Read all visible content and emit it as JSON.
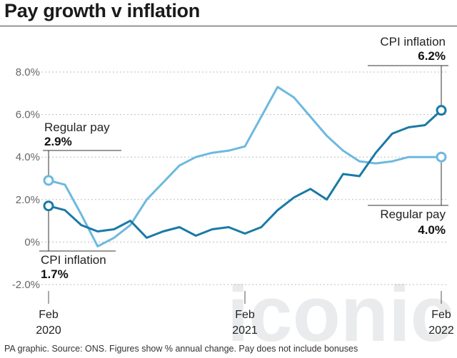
{
  "title": "Pay growth v inflation",
  "footer": "PA graphic. Source: ONS. Figures show % annual change. Pay does not include bonuses",
  "watermark": "iconic",
  "colors": {
    "cpi": "#1a7aa6",
    "pay": "#6db9df",
    "grid": "#bdbdbd",
    "axis_text": "#666666"
  },
  "annotations": {
    "cpi_start": {
      "label": "CPI inflation",
      "value": "1.7%"
    },
    "pay_start": {
      "label": "Regular pay",
      "value": "2.9%"
    },
    "cpi_end": {
      "label": "CPI inflation",
      "value": "6.2%"
    },
    "pay_end": {
      "label": "Regular pay",
      "value": "4.0%"
    }
  },
  "chart_data": {
    "type": "line",
    "title": "Pay growth v inflation",
    "xlabel": "",
    "ylabel": "",
    "ylim": [
      -2,
      8
    ],
    "yticks": [
      -2,
      0,
      2,
      4,
      6,
      8
    ],
    "ytick_labels": [
      "-2.0%",
      "0%",
      "2.0%",
      "4.0%",
      "6.0%",
      "8.0%"
    ],
    "xticks": [
      {
        "line1": "Feb",
        "line2": "2020"
      },
      {
        "line1": "Feb",
        "line2": "2021"
      },
      {
        "line1": "Feb",
        "line2": "2022"
      }
    ],
    "x": [
      "2020-02",
      "2020-03",
      "2020-04",
      "2020-05",
      "2020-06",
      "2020-07",
      "2020-08",
      "2020-09",
      "2020-10",
      "2020-11",
      "2020-12",
      "2021-01",
      "2021-02",
      "2021-03",
      "2021-04",
      "2021-05",
      "2021-06",
      "2021-07",
      "2021-08",
      "2021-09",
      "2021-10",
      "2021-11",
      "2021-12",
      "2022-01",
      "2022-02"
    ],
    "grid": true,
    "series": [
      {
        "name": "CPI inflation",
        "values": [
          1.7,
          1.5,
          0.8,
          0.5,
          0.6,
          1.0,
          0.2,
          0.5,
          0.7,
          0.3,
          0.6,
          0.7,
          0.4,
          0.7,
          1.5,
          2.1,
          2.5,
          2.0,
          3.2,
          3.1,
          4.2,
          5.1,
          5.4,
          5.5,
          6.2
        ]
      },
      {
        "name": "Regular pay",
        "values": [
          2.9,
          2.7,
          1.3,
          -0.2,
          0.2,
          0.8,
          2.0,
          2.8,
          3.6,
          4.0,
          4.2,
          4.3,
          4.5,
          5.9,
          7.3,
          6.8,
          5.9,
          5.0,
          4.3,
          3.8,
          3.7,
          3.8,
          4.0,
          4.0,
          4.0
        ]
      }
    ]
  }
}
